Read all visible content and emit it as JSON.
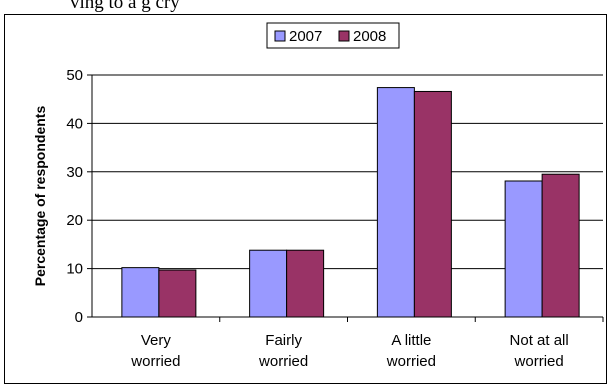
{
  "caption": "ving to a g cry",
  "chart_data": {
    "type": "bar",
    "categories": [
      [
        "Very",
        "worried"
      ],
      [
        "Fairly",
        "worried"
      ],
      [
        "A little",
        "worried"
      ],
      [
        "Not at all",
        "worried"
      ]
    ],
    "series": [
      {
        "name": "2007",
        "values": [
          10.2,
          13.8,
          47.4,
          28.1
        ],
        "color": "#9999ff"
      },
      {
        "name": "2008",
        "values": [
          9.7,
          13.8,
          46.6,
          29.5
        ],
        "color": "#993366"
      }
    ],
    "title": "",
    "xlabel": "",
    "ylabel": "Percentage of respondents",
    "ylim": [
      0,
      50
    ],
    "yticks": [
      0,
      10,
      20,
      30,
      40,
      50
    ],
    "grid": true,
    "legend_position": "top"
  }
}
